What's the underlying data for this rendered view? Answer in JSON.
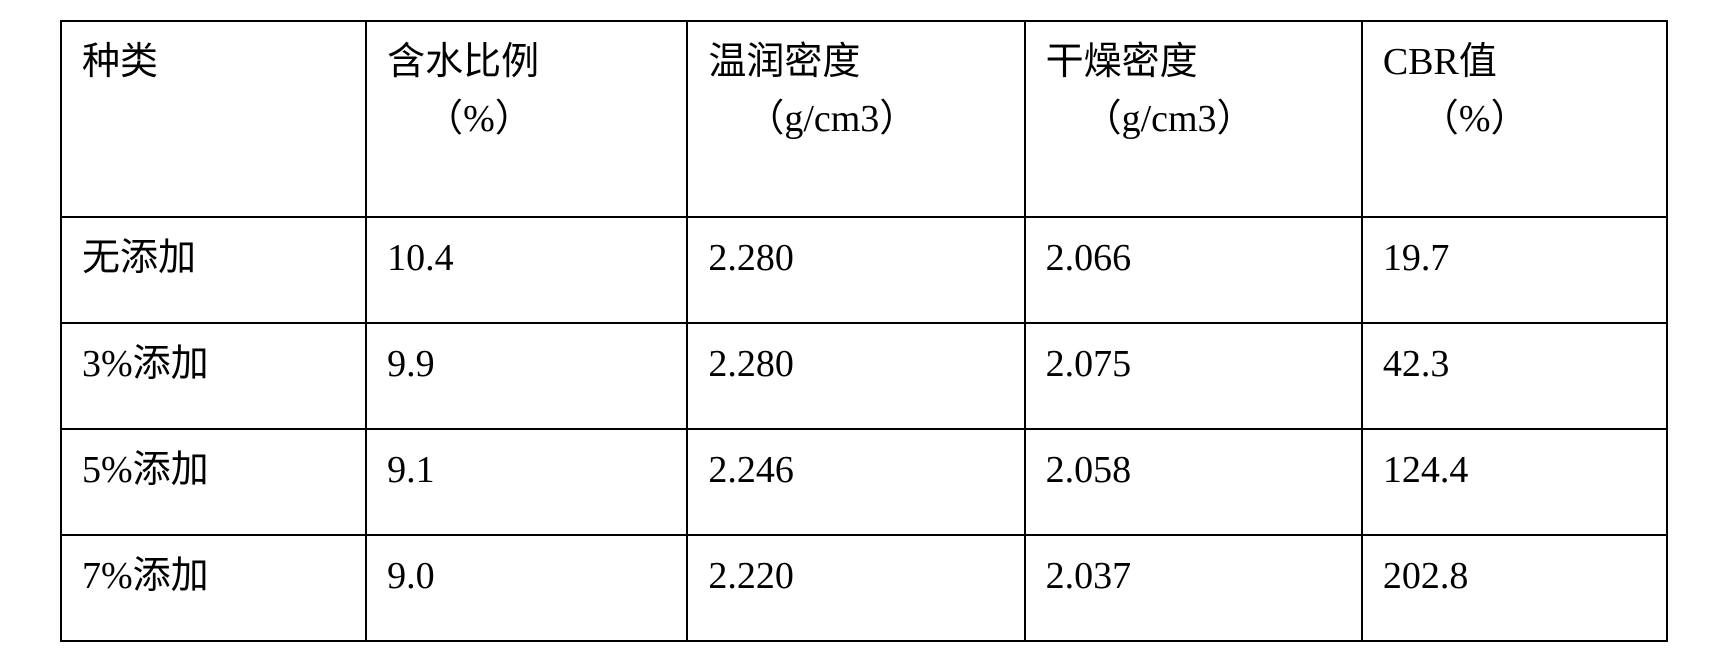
{
  "table": {
    "columns": [
      {
        "label": "种类",
        "unit": ""
      },
      {
        "label": "含水比例",
        "unit": "（%）"
      },
      {
        "label": "温润密度",
        "unit": "（g/cm3）"
      },
      {
        "label": "干燥密度",
        "unit": "（g/cm3）"
      },
      {
        "label": "CBR值",
        "unit": "（%）"
      }
    ],
    "rows": [
      {
        "c0": "无添加",
        "c1": "10.4",
        "c2": "2.280",
        "c3": "2.066",
        "c4": "19.7"
      },
      {
        "c0": "3%添加",
        "c1": "9.9",
        "c2": "2.280",
        "c3": "2.075",
        "c4": "42.3"
      },
      {
        "c0": "5%添加",
        "c1": "9.1",
        "c2": "2.246",
        "c3": "2.058",
        "c4": "124.4"
      },
      {
        "c0": "7%添加",
        "c1": "9.0",
        "c2": "2.220",
        "c3": "2.037",
        "c4": "202.8"
      }
    ],
    "border_color": "#000000",
    "background_color": "#ffffff",
    "text_color": "#000000",
    "font_size_pt": 28
  }
}
